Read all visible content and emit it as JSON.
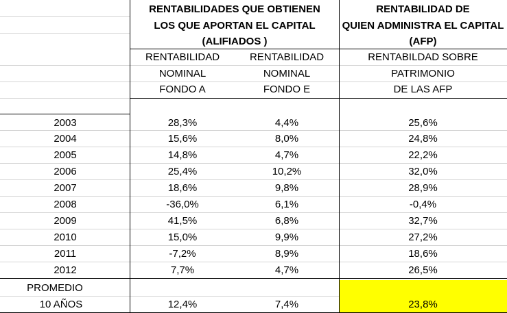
{
  "header": {
    "group_a_line1": "RENTABILIDADES QUE OBTIENEN",
    "group_a_line2": "LOS QUE APORTAN EL CAPITAL",
    "group_a_line3": "(ALIFIADOS )",
    "group_b_line1": "RENTABILIDAD DE",
    "group_b_line2": "QUIEN ADMINISTRA EL CAPITAL",
    "group_b_line3": "(AFP)"
  },
  "subheader": {
    "col_a": [
      "RENTABILIDAD",
      "NOMINAL",
      "FONDO A"
    ],
    "col_e": [
      "RENTABILIDAD",
      "NOMINAL",
      "FONDO E"
    ],
    "col_afp": [
      "RENTABILDAD SOBRE",
      "PATRIMONIO",
      "DE LAS AFP"
    ]
  },
  "rows": [
    {
      "year": "2003",
      "a": "28,3%",
      "e": "4,4%",
      "afp": "25,6%"
    },
    {
      "year": "2004",
      "a": "15,6%",
      "e": "8,0%",
      "afp": "24,8%"
    },
    {
      "year": "2005",
      "a": "14,8%",
      "e": "4,7%",
      "afp": "22,2%"
    },
    {
      "year": "2006",
      "a": "25,4%",
      "e": "10,2%",
      "afp": "32,0%"
    },
    {
      "year": "2007",
      "a": "18,6%",
      "e": "9,8%",
      "afp": "28,9%"
    },
    {
      "year": "2008",
      "a": "-36,0%",
      "e": "6,1%",
      "afp": "-0,4%"
    },
    {
      "year": "2009",
      "a": "41,5%",
      "e": "6,8%",
      "afp": "32,7%"
    },
    {
      "year": "2010",
      "a": "15,0%",
      "e": "9,9%",
      "afp": "27,2%"
    },
    {
      "year": "2011",
      "a": "-7,2%",
      "e": "8,9%",
      "afp": "18,6%"
    },
    {
      "year": "2012",
      "a": "7,7%",
      "e": "4,7%",
      "afp": "26,5%"
    }
  ],
  "average": {
    "label_line1": "PROMEDIO",
    "label_line2": "10 AÑOS",
    "a": "12,4%",
    "e": "7,4%",
    "afp": "23,8%",
    "highlight_color": "#ffff00"
  }
}
